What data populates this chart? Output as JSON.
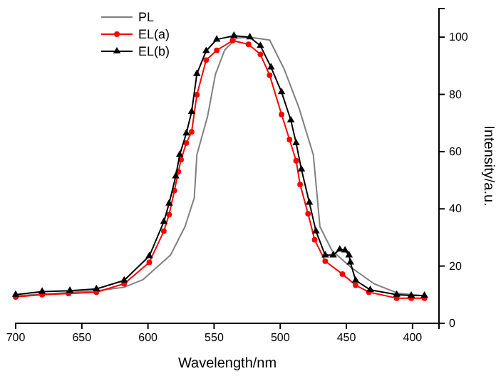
{
  "chart_data": {
    "type": "line",
    "xlabel": "Wavelength/nm",
    "ylabel": "Intensity/a.u.",
    "xlim": [
      700,
      380
    ],
    "ylim": [
      0,
      110
    ],
    "xticks": [
      700,
      650,
      600,
      550,
      500,
      450,
      400
    ],
    "yticks": [
      0,
      20,
      40,
      60,
      80,
      100
    ],
    "grid": false,
    "legend": "top left",
    "line_style": "solid",
    "series": [
      {
        "name": "PL",
        "color": "#808080",
        "marker": "none",
        "x": [
          700,
          638,
          618,
          604,
          583,
          572,
          565,
          563,
          555,
          549,
          542,
          533,
          523,
          508,
          497,
          486,
          475,
          470,
          461,
          447,
          429,
          411,
          390
        ],
        "values": [
          9.6,
          11.4,
          12.6,
          15.2,
          23.8,
          33.8,
          43.8,
          58.9,
          72.2,
          87,
          95.5,
          99.7,
          100,
          99,
          88.8,
          75.5,
          58.9,
          33.8,
          25.5,
          19.7,
          13.8,
          10.5,
          9.6
        ]
      },
      {
        "name": "EL(a)",
        "color": "#ff0000",
        "marker": "circle",
        "x": [
          700,
          680,
          660,
          639,
          618,
          599,
          588,
          584,
          580,
          577,
          575,
          571,
          567,
          563,
          556,
          548,
          536,
          524,
          515,
          508,
          499,
          493,
          488,
          485,
          479,
          474,
          466,
          453,
          443,
          433,
          412,
          401,
          391
        ],
        "values": [
          9.2,
          10,
          10.4,
          10.9,
          13.8,
          21.3,
          32.2,
          38,
          46.4,
          53,
          57.2,
          63,
          66.9,
          79.9,
          92,
          95.4,
          98.8,
          97.5,
          94,
          86.7,
          73,
          64.2,
          56.8,
          48.5,
          38.3,
          29.2,
          21.7,
          17.2,
          13.3,
          10.9,
          8.8,
          8.8,
          8.8
        ]
      },
      {
        "name": "EL(b)",
        "color": "#000000",
        "marker": "triangle",
        "x": [
          700,
          680,
          659,
          639,
          618,
          599,
          588,
          584,
          579,
          576,
          571,
          567,
          563,
          556,
          548,
          535,
          523,
          515,
          507,
          499,
          492,
          488,
          484,
          478,
          473,
          466,
          460,
          455,
          451,
          448,
          447,
          443,
          432,
          412,
          401,
          391
        ],
        "values": [
          10,
          11.1,
          11.4,
          12,
          15,
          23.5,
          35.5,
          41.9,
          51.4,
          58.9,
          66.4,
          73.9,
          87.2,
          95.2,
          99.2,
          100.5,
          100,
          97,
          89.5,
          80.8,
          71,
          63,
          53.8,
          42.2,
          32.2,
          23.8,
          23.8,
          25.8,
          25.5,
          23.8,
          21.3,
          15,
          11.7,
          10,
          9.7,
          9.7
        ]
      }
    ]
  }
}
